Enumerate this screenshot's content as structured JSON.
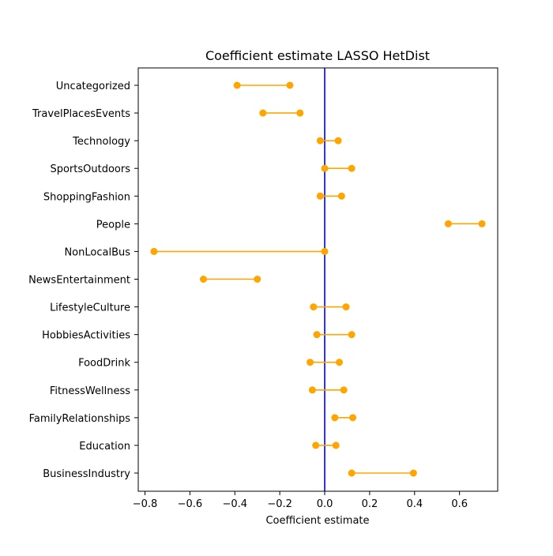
{
  "chart_data": {
    "type": "interval",
    "title": "Coefficient estimate LASSO  HetDist",
    "xlabel": "Coefficient estimate",
    "ylabel": "",
    "xlim": [
      -0.83,
      0.77
    ],
    "xticks": [
      -0.8,
      -0.6,
      -0.4,
      -0.2,
      0.0,
      0.2,
      0.4,
      0.6
    ],
    "xtick_labels": [
      "−0.8",
      "−0.6",
      "−0.4",
      "−0.2",
      "0.0",
      "0.2",
      "0.4",
      "0.6"
    ],
    "reference_line_x": 0,
    "categories": [
      "BusinessIndustry",
      "Education",
      "FamilyRelationships",
      "FitnessWellness",
      "FoodDrink",
      "HobbiesActivities",
      "LifestyleCulture",
      "NewsEntertainment",
      "NonLocalBus",
      "People",
      "ShoppingFashion",
      "SportsOutdoors",
      "Technology",
      "TravelPlacesEvents",
      "Uncategorized"
    ],
    "intervals": [
      [
        0.12,
        0.395
      ],
      [
        -0.04,
        0.05
      ],
      [
        0.045,
        0.125
      ],
      [
        -0.055,
        0.085
      ],
      [
        -0.065,
        0.065
      ],
      [
        -0.035,
        0.12
      ],
      [
        -0.05,
        0.095
      ],
      [
        -0.54,
        -0.3
      ],
      [
        -0.76,
        0.0
      ],
      [
        0.55,
        0.7
      ],
      [
        -0.02,
        0.075
      ],
      [
        0.0,
        0.12
      ],
      [
        -0.02,
        0.06
      ],
      [
        -0.275,
        -0.11
      ],
      [
        -0.39,
        -0.155
      ]
    ],
    "grid": false,
    "colors": {
      "interval": "#FFA500",
      "reference_line": "#0000CC",
      "axes": "#000000"
    }
  }
}
